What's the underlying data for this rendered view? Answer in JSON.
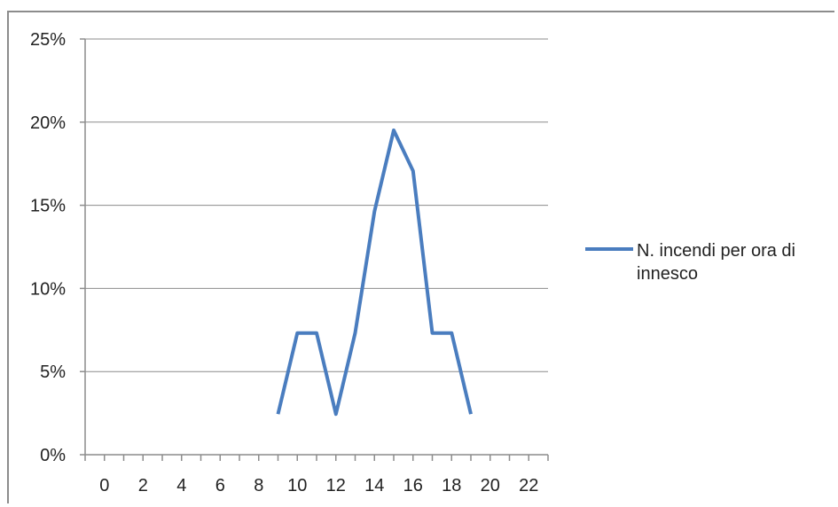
{
  "chart_data": {
    "type": "line",
    "x": [
      9,
      10,
      11,
      12,
      13,
      14,
      15,
      16,
      17,
      18,
      19
    ],
    "series": [
      {
        "name": "N. incendi per ora di innesco",
        "values": [
          2.44,
          7.32,
          7.32,
          2.44,
          7.32,
          14.63,
          19.51,
          17.07,
          7.32,
          7.32,
          2.44
        ],
        "color": "#4a7dbf"
      }
    ],
    "xlim": [
      -1,
      23
    ],
    "ylim": [
      0,
      25
    ],
    "x_ticks": [
      0,
      2,
      4,
      6,
      8,
      10,
      12,
      14,
      16,
      18,
      20,
      22
    ],
    "y_ticks": [
      0,
      5,
      10,
      15,
      20,
      25
    ],
    "y_tick_labels": [
      "0%",
      "5%",
      "10%",
      "15%",
      "20%",
      "25%"
    ],
    "grid": "horizontal",
    "legend_position": "right",
    "title": "",
    "xlabel": "",
    "ylabel": ""
  }
}
